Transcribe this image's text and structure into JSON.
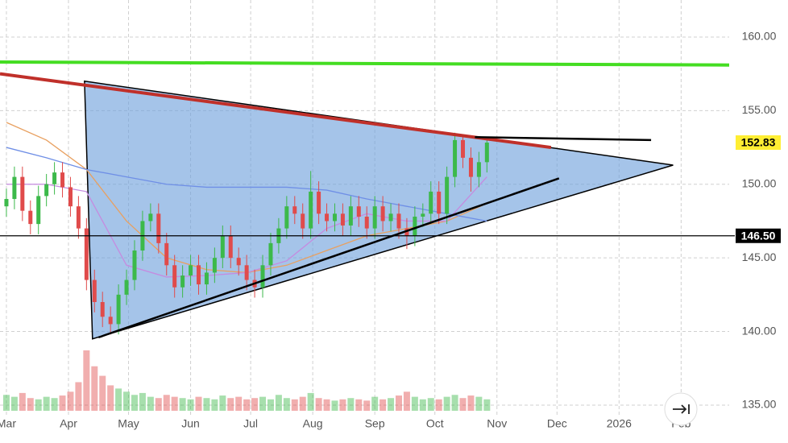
{
  "chart_data": {
    "type": "candlestick",
    "xlim": [
      -3.2,
      361
    ],
    "ylim": [
      134.5,
      162
    ],
    "yticks": [
      {
        "value": 135,
        "label": "135.00"
      },
      {
        "value": 140,
        "label": "140.00"
      },
      {
        "value": 145,
        "label": "145.00"
      },
      {
        "value": 150,
        "label": "150.00"
      },
      {
        "value": 155,
        "label": "155.00"
      },
      {
        "value": 160,
        "label": "160.00"
      }
    ],
    "xticks": [
      {
        "value": 0,
        "label": "Mar"
      },
      {
        "value": 31,
        "label": "Apr"
      },
      {
        "value": 61,
        "label": "May"
      },
      {
        "value": 92,
        "label": "Jun"
      },
      {
        "value": 122,
        "label": "Jul"
      },
      {
        "value": 153,
        "label": "Aug"
      },
      {
        "value": 184,
        "label": "Sep"
      },
      {
        "value": 214,
        "label": "Oct"
      },
      {
        "value": 245,
        "label": "Nov"
      },
      {
        "value": 275,
        "label": "Dec"
      },
      {
        "value": 306,
        "label": "2026"
      },
      {
        "value": 337,
        "label": "Feb"
      }
    ],
    "grid": true,
    "up_color": "#3cb94a",
    "down_color": "#e04b4b",
    "x": [
      0,
      4,
      8,
      12,
      16,
      20,
      24,
      28,
      32,
      36,
      40,
      44,
      48,
      52,
      56,
      60,
      64,
      68,
      72,
      76,
      80,
      84,
      88,
      92,
      96,
      100,
      104,
      108,
      112,
      116,
      120,
      124,
      128,
      132,
      136,
      140,
      144,
      148,
      152,
      156,
      160,
      164,
      168,
      172,
      176,
      180,
      184,
      188,
      192,
      196,
      200,
      204,
      208,
      212,
      216,
      220,
      224,
      228,
      232,
      236,
      240
    ],
    "open": [
      148.5,
      149.0,
      150.5,
      148.2,
      147.3,
      149.2,
      150.0,
      150.8,
      149.8,
      148.5,
      147.0,
      143.5,
      142.0,
      141.0,
      140.5,
      142.5,
      143.5,
      145.5,
      147.5,
      148.0,
      146.0,
      144.5,
      143.0,
      143.8,
      144.5,
      143.2,
      144.0,
      145.0,
      146.5,
      145.0,
      144.5,
      143.5,
      143.0,
      144.5,
      146.0,
      147.0,
      148.5,
      148.0,
      147.0,
      149.5,
      148.0,
      147.5,
      148.0,
      147.2,
      148.5,
      147.8,
      147.0,
      148.5,
      147.5,
      148.0,
      147.0,
      146.5,
      147.8,
      148.0,
      149.5,
      148.0,
      150.5,
      153.0,
      151.8,
      150.5,
      151.5
    ],
    "high": [
      149.7,
      151.2,
      151.2,
      148.9,
      149.9,
      150.7,
      151.5,
      151.5,
      150.5,
      149.2,
      147.7,
      144.2,
      142.7,
      141.7,
      143.2,
      144.2,
      146.2,
      148.2,
      148.7,
      148.7,
      146.7,
      145.2,
      144.5,
      145.2,
      145.2,
      144.7,
      145.7,
      147.2,
      147.2,
      145.7,
      145.2,
      144.2,
      145.2,
      146.7,
      147.7,
      149.2,
      149.2,
      148.7,
      150.9,
      150.2,
      148.7,
      148.7,
      148.7,
      149.2,
      149.2,
      148.5,
      149.2,
      149.2,
      148.7,
      148.7,
      147.7,
      148.5,
      148.7,
      150.2,
      150.2,
      151.2,
      153.5,
      153.3,
      152.5,
      152.2,
      153.2
    ],
    "low": [
      147.8,
      148.3,
      147.5,
      146.6,
      146.6,
      148.5,
      149.3,
      149.1,
      147.8,
      146.3,
      142.8,
      141.3,
      140.3,
      139.8,
      139.8,
      141.8,
      142.8,
      144.8,
      146.8,
      145.3,
      143.8,
      142.3,
      142.3,
      143.1,
      142.5,
      142.5,
      143.3,
      144.3,
      144.3,
      143.8,
      142.8,
      142.3,
      142.3,
      143.8,
      145.3,
      146.3,
      147.3,
      146.3,
      146.3,
      147.3,
      146.8,
      146.8,
      146.5,
      146.5,
      147.1,
      146.3,
      146.3,
      146.8,
      146.8,
      146.3,
      145.6,
      145.8,
      147.1,
      147.3,
      147.3,
      147.3,
      149.8,
      151.1,
      149.5,
      149.8,
      150.8
    ],
    "close": [
      149.0,
      150.5,
      148.2,
      147.3,
      149.2,
      150.0,
      150.8,
      149.8,
      148.5,
      147.0,
      143.5,
      142.0,
      141.0,
      140.5,
      142.5,
      143.5,
      145.5,
      147.5,
      148.0,
      146.0,
      144.5,
      143.0,
      143.8,
      144.5,
      143.2,
      144.0,
      145.0,
      146.5,
      145.0,
      144.5,
      143.5,
      143.0,
      144.5,
      146.0,
      147.0,
      148.5,
      148.0,
      147.0,
      149.5,
      148.0,
      147.5,
      148.0,
      147.2,
      148.5,
      147.8,
      147.0,
      148.5,
      147.5,
      148.0,
      147.0,
      146.5,
      147.8,
      148.0,
      149.5,
      148.0,
      150.5,
      153.0,
      151.8,
      150.5,
      151.5,
      152.83
    ],
    "volume": [
      25,
      22,
      28,
      20,
      18,
      22,
      20,
      24,
      30,
      45,
      95,
      70,
      55,
      40,
      35,
      30,
      25,
      28,
      22,
      20,
      25,
      22,
      20,
      18,
      22,
      20,
      18,
      24,
      20,
      22,
      18,
      20,
      22,
      18,
      25,
      20,
      18,
      22,
      28,
      20,
      18,
      16,
      18,
      20,
      18,
      16,
      22,
      18,
      20,
      24,
      30,
      22,
      18,
      20,
      18,
      22,
      25,
      20,
      24,
      22,
      18
    ],
    "moving_averages": [
      {
        "color": "#e8a060",
        "x": [
          0,
          20,
          40,
          60,
          80,
          100,
          120,
          140,
          160,
          180,
          200,
          220,
          240
        ],
        "values": [
          154.2,
          153,
          151,
          147.5,
          145,
          144.2,
          144,
          144.5,
          145.5,
          146.5,
          147,
          147.5,
          148.7
        ]
      },
      {
        "color": "#c58be0",
        "x": [
          0,
          20,
          40,
          60,
          80,
          100,
          120,
          140,
          160,
          180,
          200,
          220,
          240
        ],
        "values": [
          150,
          150,
          149.5,
          144.5,
          143.7,
          143.8,
          144,
          144.8,
          147,
          148,
          147.5,
          147.5,
          150.5
        ]
      },
      {
        "color": "#6f8fe6",
        "x": [
          0,
          20,
          40,
          60,
          80,
          100,
          120,
          140,
          160,
          180,
          200,
          220,
          240
        ],
        "values": [
          152.5,
          151.8,
          151,
          150.5,
          150,
          149.8,
          149.8,
          149.8,
          149.6,
          149,
          148.5,
          148,
          147.5
        ]
      }
    ],
    "shapes": [
      {
        "kind": "polygon",
        "fill": "rgba(110,160,220,0.62)",
        "stroke": "#000",
        "x": [
          39,
          333,
          43
        ],
        "y": [
          157,
          151.3,
          139.5
        ]
      },
      {
        "kind": "line",
        "stroke": "#44dd22",
        "width": 4,
        "x": [
          -3.2,
          361
        ],
        "y": [
          158.3,
          158.1
        ]
      },
      {
        "kind": "line",
        "stroke": "#c0302a",
        "width": 4,
        "x": [
          -3.2,
          272
        ],
        "y": [
          157.5,
          152.5
        ]
      },
      {
        "kind": "line",
        "stroke": "#000",
        "width": 2.5,
        "x": [
          46,
          276
        ],
        "y": [
          139.6,
          150.4
        ]
      },
      {
        "kind": "line",
        "stroke": "#000",
        "width": 2.5,
        "x": [
          234,
          322
        ],
        "y": [
          153.2,
          153.0
        ]
      }
    ],
    "price_tags": [
      {
        "value": 152.83,
        "label": "152.83",
        "fill": "#ffee33",
        "text_color": "#000",
        "line": false
      },
      {
        "value": 146.5,
        "label": "146.50",
        "fill": "#000",
        "text_color": "#fff",
        "line": true
      }
    ]
  }
}
